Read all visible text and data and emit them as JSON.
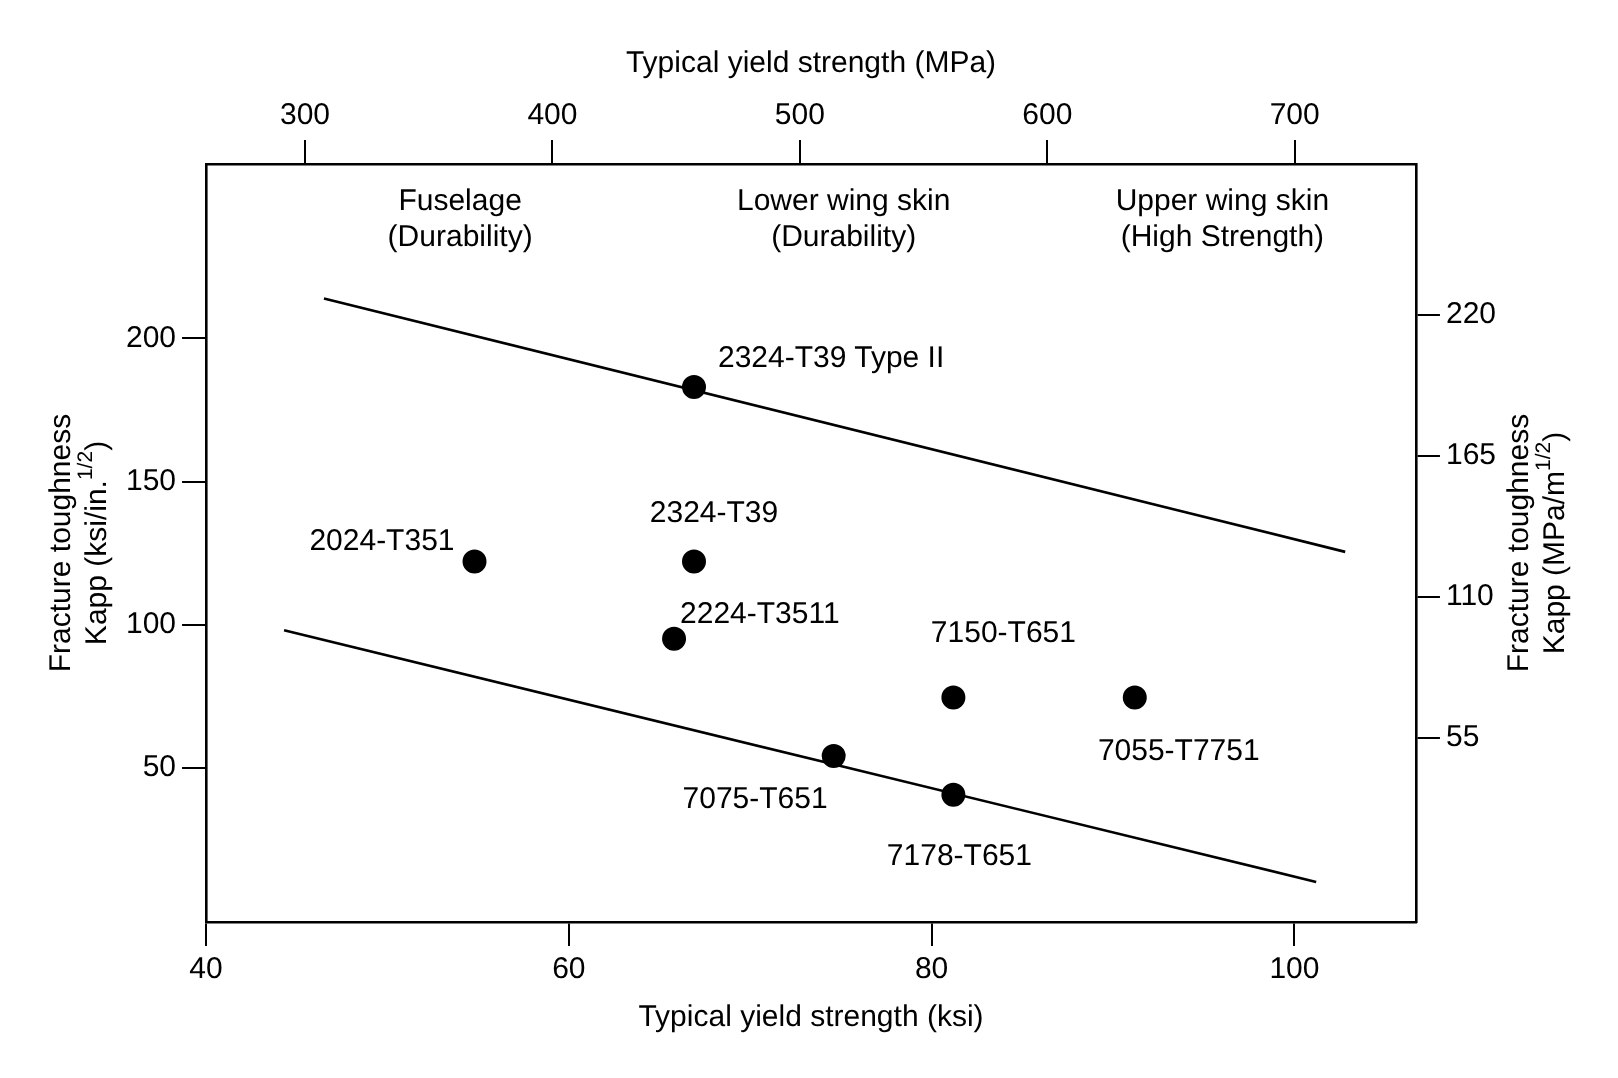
{
  "chart_data": {
    "type": "scatter",
    "xlabel": "Typical yield strength (ksi)",
    "x2label": "Typical yield strength (MPa)",
    "ylabel": "Fracture toughness\nKapp (ksi/in.$^{1/2}$)",
    "y2label": "Fracture toughness\nKapp (MPa/m$^{1/2}$)",
    "xlim": [
      40,
      106.7
    ],
    "xticks": [
      40,
      60,
      80,
      100
    ],
    "x2lim": [
      260,
      749
    ],
    "x2ticks": [
      300,
      400,
      500,
      600,
      700
    ],
    "ylim": [
      -4,
      261
    ],
    "yticks": [
      50,
      100,
      150,
      200
    ],
    "y2lim": [
      -17,
      279
    ],
    "y2ticks": [
      55,
      110,
      165,
      220
    ],
    "series": [
      {
        "color": "#000000",
        "marker": "circle",
        "x": [
          66.9,
          54.8,
          66.9,
          65.8,
          81.2,
          91.2,
          74.6,
          81.2
        ],
        "values": [
          183,
          122,
          122,
          95,
          74.5,
          74.5,
          54,
          40.5
        ]
      },
      {
        "type": "line",
        "color": "#000000",
        "marker": "none",
        "x": [
          46.5,
          102.8
        ],
        "values": [
          214,
          125.4
        ]
      },
      {
        "type": "line",
        "color": "#000000",
        "marker": "none",
        "x": [
          44.3,
          101.2
        ],
        "values": [
          98,
          10
        ]
      }
    ],
    "grid": false,
    "legend": false,
    "annotations": [
      "Fuselage\n(Durability)",
      "Lower wing skin\n(Durability)",
      "Upper wing skin\n(High Strength)",
      {
        "text": "2324-T39 Type II",
        "x": 66.9,
        "y": 183
      },
      {
        "text": "2024-T351",
        "x": 54.8,
        "y": 122
      },
      {
        "text": "2324-T39",
        "x": 66.9,
        "y": 122
      },
      {
        "text": "2224-T3511",
        "x": 65.8,
        "y": 95
      },
      {
        "text": "7150-T651",
        "x": 81.2,
        "y": 74.5
      },
      {
        "text": "7055-T7751",
        "x": 91.2,
        "y": 74.5
      },
      {
        "text": "7075-T651",
        "x": 74.6,
        "y": 54
      },
      {
        "text": "7178-T651",
        "x": 81.2,
        "y": 40.5
      }
    ]
  }
}
